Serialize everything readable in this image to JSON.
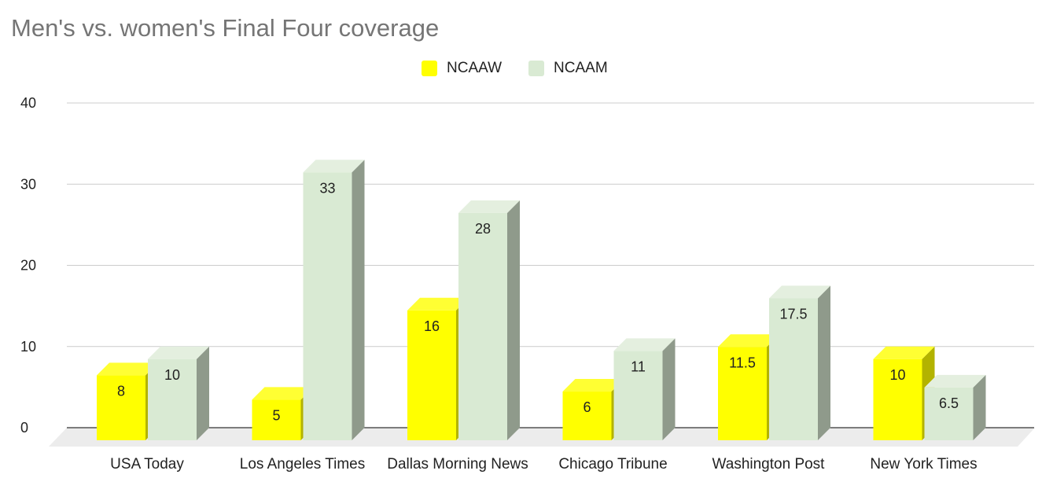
{
  "chart_data": {
    "type": "bar",
    "title": "Men's vs. women's Final Four coverage",
    "xlabel": "",
    "ylabel": "",
    "categories": [
      "USA Today",
      "Los Angeles Times",
      "Dallas Morning News",
      "Chicago Tribune",
      "Washington Post",
      "New York Times"
    ],
    "series": [
      {
        "name": "NCAAW",
        "color": "#ffff00",
        "values": [
          8,
          5,
          16,
          6,
          11.5,
          10
        ]
      },
      {
        "name": "NCAAM",
        "color": "#d9ead3",
        "values": [
          10,
          33,
          28,
          11,
          17.5,
          6.5
        ]
      }
    ],
    "y_ticks": [
      "0",
      "10",
      "20",
      "30",
      "40"
    ],
    "ylim": [
      0,
      40
    ],
    "grid": true,
    "legend_position": "top-center",
    "style": "3d"
  }
}
